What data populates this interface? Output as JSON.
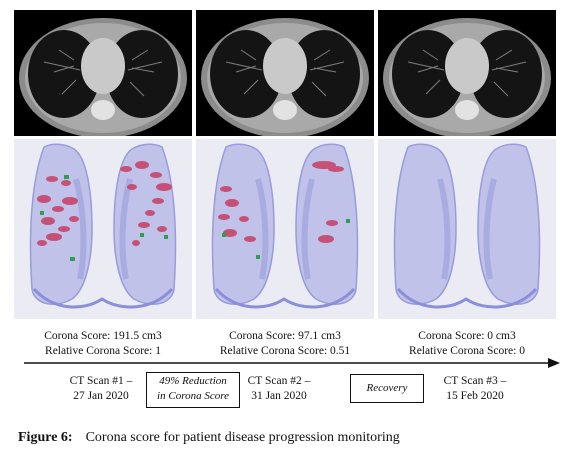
{
  "panels": [
    {
      "scan": "CT Scan #1 –",
      "date": "27 Jan 2020",
      "score_line": "Corona Score: 191.5 cm3",
      "relative_line": "Relative Corona Score: 1"
    },
    {
      "scan": "CT Scan #2 –",
      "date": "31 Jan 2020",
      "score_line": "Corona Score: 97.1 cm3",
      "relative_line": "Relative Corona Score: 0.51"
    },
    {
      "scan": "CT Scan #3 –",
      "date": "15 Feb 2020",
      "score_line": "Corona Score: 0 cm3",
      "relative_line": "Relative Corona Score: 0"
    }
  ],
  "timeline_boxes": {
    "reduction_line1": "49% Reduction",
    "reduction_line2": "in Corona Score",
    "recovery": "Recovery"
  },
  "caption": {
    "label": "Figure 6:",
    "text": "Corona score for patient disease progression monitoring"
  },
  "colors": {
    "lesion_red": "#c8456a",
    "lesion_green": "#2f9e4f",
    "lung_blue": "#8a8fd8"
  }
}
